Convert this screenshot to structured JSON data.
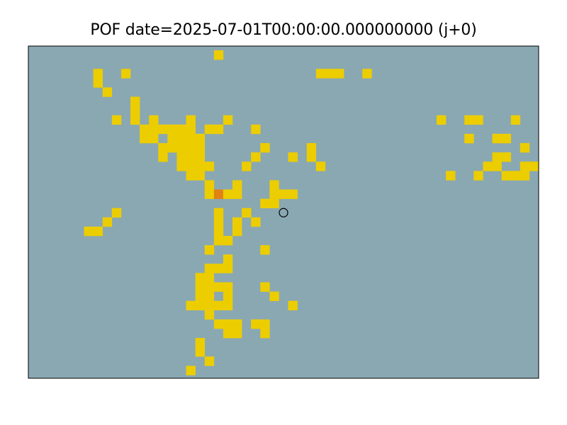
{
  "chart_data": {
    "type": "heatmap",
    "title": "POF date=2025-07-01T00:00:00.000000000 (j+0)",
    "xlabel": "",
    "ylabel": "",
    "grid": false,
    "legend": "none",
    "grid_size": {
      "cols": 55,
      "rows": 36
    },
    "colors": {
      "background": "#8aa8b2",
      "level_1": "#eccd00",
      "level_2": "#e08214",
      "frame": "#000000",
      "marker_edge": "#000000"
    },
    "cells": [
      {
        "col": 20,
        "row": 0,
        "level": 1
      },
      {
        "col": 7,
        "row": 2,
        "level": 1
      },
      {
        "col": 10,
        "row": 2,
        "level": 1
      },
      {
        "col": 31,
        "row": 2,
        "level": 1
      },
      {
        "col": 32,
        "row": 2,
        "level": 1
      },
      {
        "col": 33,
        "row": 2,
        "level": 1
      },
      {
        "col": 36,
        "row": 2,
        "level": 1
      },
      {
        "col": 7,
        "row": 3,
        "level": 1
      },
      {
        "col": 8,
        "row": 4,
        "level": 1
      },
      {
        "col": 11,
        "row": 5,
        "level": 1
      },
      {
        "col": 11,
        "row": 6,
        "level": 1
      },
      {
        "col": 9,
        "row": 7,
        "level": 1
      },
      {
        "col": 11,
        "row": 7,
        "level": 1
      },
      {
        "col": 13,
        "row": 7,
        "level": 1
      },
      {
        "col": 17,
        "row": 7,
        "level": 1
      },
      {
        "col": 21,
        "row": 7,
        "level": 1
      },
      {
        "col": 44,
        "row": 7,
        "level": 1
      },
      {
        "col": 47,
        "row": 7,
        "level": 1
      },
      {
        "col": 48,
        "row": 7,
        "level": 1
      },
      {
        "col": 52,
        "row": 7,
        "level": 1
      },
      {
        "col": 12,
        "row": 8,
        "level": 1
      },
      {
        "col": 13,
        "row": 8,
        "level": 1
      },
      {
        "col": 14,
        "row": 8,
        "level": 1
      },
      {
        "col": 15,
        "row": 8,
        "level": 1
      },
      {
        "col": 16,
        "row": 8,
        "level": 1
      },
      {
        "col": 17,
        "row": 8,
        "level": 1
      },
      {
        "col": 19,
        "row": 8,
        "level": 1
      },
      {
        "col": 20,
        "row": 8,
        "level": 1
      },
      {
        "col": 24,
        "row": 8,
        "level": 1
      },
      {
        "col": 12,
        "row": 9,
        "level": 1
      },
      {
        "col": 13,
        "row": 9,
        "level": 1
      },
      {
        "col": 15,
        "row": 9,
        "level": 1
      },
      {
        "col": 16,
        "row": 9,
        "level": 1
      },
      {
        "col": 17,
        "row": 9,
        "level": 1
      },
      {
        "col": 18,
        "row": 9,
        "level": 1
      },
      {
        "col": 47,
        "row": 9,
        "level": 1
      },
      {
        "col": 50,
        "row": 9,
        "level": 1
      },
      {
        "col": 51,
        "row": 9,
        "level": 1
      },
      {
        "col": 14,
        "row": 10,
        "level": 1
      },
      {
        "col": 15,
        "row": 10,
        "level": 1
      },
      {
        "col": 16,
        "row": 10,
        "level": 1
      },
      {
        "col": 17,
        "row": 10,
        "level": 1
      },
      {
        "col": 18,
        "row": 10,
        "level": 1
      },
      {
        "col": 25,
        "row": 10,
        "level": 1
      },
      {
        "col": 30,
        "row": 10,
        "level": 1
      },
      {
        "col": 53,
        "row": 10,
        "level": 1
      },
      {
        "col": 14,
        "row": 11,
        "level": 1
      },
      {
        "col": 16,
        "row": 11,
        "level": 1
      },
      {
        "col": 17,
        "row": 11,
        "level": 1
      },
      {
        "col": 18,
        "row": 11,
        "level": 1
      },
      {
        "col": 24,
        "row": 11,
        "level": 1
      },
      {
        "col": 28,
        "row": 11,
        "level": 1
      },
      {
        "col": 30,
        "row": 11,
        "level": 1
      },
      {
        "col": 50,
        "row": 11,
        "level": 1
      },
      {
        "col": 51,
        "row": 11,
        "level": 1
      },
      {
        "col": 16,
        "row": 12,
        "level": 1
      },
      {
        "col": 17,
        "row": 12,
        "level": 1
      },
      {
        "col": 18,
        "row": 12,
        "level": 1
      },
      {
        "col": 19,
        "row": 12,
        "level": 1
      },
      {
        "col": 23,
        "row": 12,
        "level": 1
      },
      {
        "col": 31,
        "row": 12,
        "level": 1
      },
      {
        "col": 49,
        "row": 12,
        "level": 1
      },
      {
        "col": 50,
        "row": 12,
        "level": 1
      },
      {
        "col": 53,
        "row": 12,
        "level": 1
      },
      {
        "col": 54,
        "row": 12,
        "level": 1
      },
      {
        "col": 17,
        "row": 13,
        "level": 1
      },
      {
        "col": 18,
        "row": 13,
        "level": 1
      },
      {
        "col": 45,
        "row": 13,
        "level": 1
      },
      {
        "col": 48,
        "row": 13,
        "level": 1
      },
      {
        "col": 51,
        "row": 13,
        "level": 1
      },
      {
        "col": 52,
        "row": 13,
        "level": 1
      },
      {
        "col": 53,
        "row": 13,
        "level": 1
      },
      {
        "col": 19,
        "row": 14,
        "level": 1
      },
      {
        "col": 22,
        "row": 14,
        "level": 1
      },
      {
        "col": 26,
        "row": 14,
        "level": 1
      },
      {
        "col": 19,
        "row": 15,
        "level": 1
      },
      {
        "col": 20,
        "row": 15,
        "level": 2
      },
      {
        "col": 21,
        "row": 15,
        "level": 1
      },
      {
        "col": 22,
        "row": 15,
        "level": 1
      },
      {
        "col": 26,
        "row": 15,
        "level": 1
      },
      {
        "col": 27,
        "row": 15,
        "level": 1
      },
      {
        "col": 28,
        "row": 15,
        "level": 1
      },
      {
        "col": 25,
        "row": 16,
        "level": 1
      },
      {
        "col": 26,
        "row": 16,
        "level": 1
      },
      {
        "col": 9,
        "row": 17,
        "level": 1
      },
      {
        "col": 20,
        "row": 17,
        "level": 1
      },
      {
        "col": 23,
        "row": 17,
        "level": 1
      },
      {
        "col": 8,
        "row": 18,
        "level": 1
      },
      {
        "col": 20,
        "row": 18,
        "level": 1
      },
      {
        "col": 22,
        "row": 18,
        "level": 1
      },
      {
        "col": 24,
        "row": 18,
        "level": 1
      },
      {
        "col": 6,
        "row": 19,
        "level": 1
      },
      {
        "col": 7,
        "row": 19,
        "level": 1
      },
      {
        "col": 20,
        "row": 19,
        "level": 1
      },
      {
        "col": 22,
        "row": 19,
        "level": 1
      },
      {
        "col": 20,
        "row": 20,
        "level": 1
      },
      {
        "col": 21,
        "row": 20,
        "level": 1
      },
      {
        "col": 19,
        "row": 21,
        "level": 1
      },
      {
        "col": 25,
        "row": 21,
        "level": 1
      },
      {
        "col": 21,
        "row": 22,
        "level": 1
      },
      {
        "col": 19,
        "row": 23,
        "level": 1
      },
      {
        "col": 20,
        "row": 23,
        "level": 1
      },
      {
        "col": 21,
        "row": 23,
        "level": 1
      },
      {
        "col": 18,
        "row": 24,
        "level": 1
      },
      {
        "col": 19,
        "row": 24,
        "level": 1
      },
      {
        "col": 18,
        "row": 25,
        "level": 1
      },
      {
        "col": 19,
        "row": 25,
        "level": 1
      },
      {
        "col": 20,
        "row": 25,
        "level": 1
      },
      {
        "col": 21,
        "row": 25,
        "level": 1
      },
      {
        "col": 25,
        "row": 25,
        "level": 1
      },
      {
        "col": 18,
        "row": 26,
        "level": 1
      },
      {
        "col": 19,
        "row": 26,
        "level": 1
      },
      {
        "col": 21,
        "row": 26,
        "level": 1
      },
      {
        "col": 26,
        "row": 26,
        "level": 1
      },
      {
        "col": 17,
        "row": 27,
        "level": 1
      },
      {
        "col": 18,
        "row": 27,
        "level": 1
      },
      {
        "col": 19,
        "row": 27,
        "level": 1
      },
      {
        "col": 20,
        "row": 27,
        "level": 1
      },
      {
        "col": 21,
        "row": 27,
        "level": 1
      },
      {
        "col": 28,
        "row": 27,
        "level": 1
      },
      {
        "col": 19,
        "row": 28,
        "level": 1
      },
      {
        "col": 20,
        "row": 29,
        "level": 1
      },
      {
        "col": 21,
        "row": 29,
        "level": 1
      },
      {
        "col": 22,
        "row": 29,
        "level": 1
      },
      {
        "col": 24,
        "row": 29,
        "level": 1
      },
      {
        "col": 25,
        "row": 29,
        "level": 1
      },
      {
        "col": 21,
        "row": 30,
        "level": 1
      },
      {
        "col": 22,
        "row": 30,
        "level": 1
      },
      {
        "col": 25,
        "row": 30,
        "level": 1
      },
      {
        "col": 18,
        "row": 31,
        "level": 1
      },
      {
        "col": 18,
        "row": 32,
        "level": 1
      },
      {
        "col": 19,
        "row": 33,
        "level": 1
      },
      {
        "col": 17,
        "row": 34,
        "level": 1
      }
    ],
    "markers": [
      {
        "col": 27.5,
        "row": 17.5,
        "shape": "circle",
        "fill": "none"
      }
    ]
  }
}
